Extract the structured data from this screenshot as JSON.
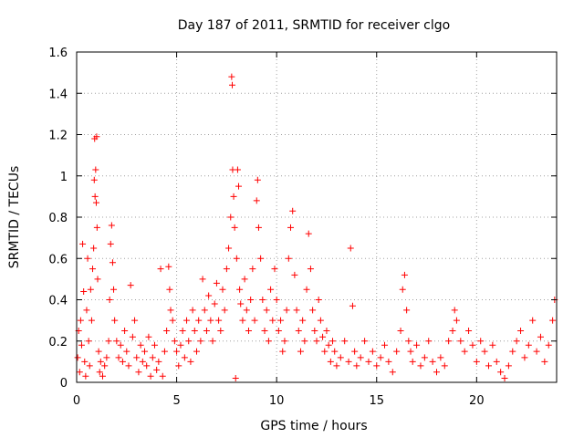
{
  "chart_data": {
    "type": "scatter",
    "title": "Day 187 of 2011, SRMTID for receiver clgo",
    "xlabel": "GPS time / hours",
    "ylabel": "SRMTID / TECUs",
    "xlim": [
      0,
      24
    ],
    "ylim": [
      0,
      1.6
    ],
    "xticks": [
      0,
      5,
      10,
      15,
      20
    ],
    "xtick_labels": [
      "0",
      "5",
      "10",
      "15",
      "20"
    ],
    "yticks": [
      0,
      0.2,
      0.4,
      0.6,
      0.8,
      1,
      1.2,
      1.4,
      1.6
    ],
    "ytick_labels": [
      "0",
      "0.2",
      "0.4",
      "0.6",
      "0.8",
      "1",
      "1.2",
      "1.4",
      "1.6"
    ],
    "grid": true,
    "marker": "plus",
    "color": "#ff0000",
    "series": [
      {
        "name": "SRMTID",
        "points": [
          [
            0.05,
            0.12
          ],
          [
            0.1,
            0.25
          ],
          [
            0.15,
            0.05
          ],
          [
            0.2,
            0.3
          ],
          [
            0.25,
            0.18
          ],
          [
            0.3,
            0.67
          ],
          [
            0.35,
            0.44
          ],
          [
            0.4,
            0.1
          ],
          [
            0.45,
            0.03
          ],
          [
            0.5,
            0.35
          ],
          [
            0.55,
            0.6
          ],
          [
            0.6,
            0.2
          ],
          [
            0.65,
            0.08
          ],
          [
            0.7,
            0.45
          ],
          [
            0.75,
            0.3
          ],
          [
            0.8,
            0.55
          ],
          [
            0.85,
            0.65
          ],
          [
            0.88,
            0.98
          ],
          [
            0.9,
            1.18
          ],
          [
            0.92,
            0.9
          ],
          [
            0.95,
            1.03
          ],
          [
            0.98,
            0.87
          ],
          [
            1.0,
            1.19
          ],
          [
            1.02,
            0.75
          ],
          [
            1.05,
            0.5
          ],
          [
            1.1,
            0.15
          ],
          [
            1.15,
            0.05
          ],
          [
            1.2,
            0.1
          ],
          [
            1.3,
            0.03
          ],
          [
            1.4,
            0.08
          ],
          [
            1.5,
            0.12
          ],
          [
            1.6,
            0.2
          ],
          [
            1.65,
            0.4
          ],
          [
            1.7,
            0.67
          ],
          [
            1.75,
            0.76
          ],
          [
            1.8,
            0.58
          ],
          [
            1.85,
            0.45
          ],
          [
            1.9,
            0.3
          ],
          [
            2.0,
            0.2
          ],
          [
            2.1,
            0.12
          ],
          [
            2.2,
            0.18
          ],
          [
            2.3,
            0.1
          ],
          [
            2.4,
            0.25
          ],
          [
            2.5,
            0.15
          ],
          [
            2.6,
            0.08
          ],
          [
            2.7,
            0.47
          ],
          [
            2.8,
            0.22
          ],
          [
            2.9,
            0.3
          ],
          [
            3.0,
            0.12
          ],
          [
            3.1,
            0.05
          ],
          [
            3.2,
            0.18
          ],
          [
            3.3,
            0.1
          ],
          [
            3.4,
            0.15
          ],
          [
            3.5,
            0.08
          ],
          [
            3.6,
            0.22
          ],
          [
            3.7,
            0.03
          ],
          [
            3.8,
            0.12
          ],
          [
            3.9,
            0.18
          ],
          [
            4.0,
            0.06
          ],
          [
            4.1,
            0.1
          ],
          [
            4.2,
            0.55
          ],
          [
            4.3,
            0.03
          ],
          [
            4.4,
            0.15
          ],
          [
            4.5,
            0.25
          ],
          [
            4.6,
            0.56
          ],
          [
            4.65,
            0.45
          ],
          [
            4.7,
            0.35
          ],
          [
            4.8,
            0.3
          ],
          [
            4.9,
            0.2
          ],
          [
            5.0,
            0.15
          ],
          [
            5.1,
            0.08
          ],
          [
            5.2,
            0.18
          ],
          [
            5.3,
            0.25
          ],
          [
            5.4,
            0.12
          ],
          [
            5.5,
            0.3
          ],
          [
            5.6,
            0.2
          ],
          [
            5.7,
            0.1
          ],
          [
            5.8,
            0.35
          ],
          [
            5.9,
            0.25
          ],
          [
            6.0,
            0.15
          ],
          [
            6.1,
            0.3
          ],
          [
            6.2,
            0.2
          ],
          [
            6.3,
            0.5
          ],
          [
            6.4,
            0.35
          ],
          [
            6.5,
            0.25
          ],
          [
            6.6,
            0.42
          ],
          [
            6.7,
            0.3
          ],
          [
            6.8,
            0.2
          ],
          [
            6.9,
            0.38
          ],
          [
            7.0,
            0.48
          ],
          [
            7.1,
            0.3
          ],
          [
            7.2,
            0.25
          ],
          [
            7.3,
            0.45
          ],
          [
            7.4,
            0.35
          ],
          [
            7.5,
            0.55
          ],
          [
            7.6,
            0.65
          ],
          [
            7.7,
            0.8
          ],
          [
            7.75,
            1.48
          ],
          [
            7.78,
            1.44
          ],
          [
            7.8,
            1.03
          ],
          [
            7.85,
            0.9
          ],
          [
            7.9,
            0.75
          ],
          [
            7.95,
            0.02
          ],
          [
            8.0,
            0.6
          ],
          [
            8.05,
            1.03
          ],
          [
            8.1,
            0.95
          ],
          [
            8.15,
            0.45
          ],
          [
            8.2,
            0.38
          ],
          [
            8.3,
            0.3
          ],
          [
            8.4,
            0.5
          ],
          [
            8.5,
            0.35
          ],
          [
            8.6,
            0.25
          ],
          [
            8.7,
            0.4
          ],
          [
            8.8,
            0.55
          ],
          [
            8.9,
            0.3
          ],
          [
            9.0,
            0.88
          ],
          [
            9.05,
            0.98
          ],
          [
            9.1,
            0.75
          ],
          [
            9.2,
            0.6
          ],
          [
            9.3,
            0.4
          ],
          [
            9.4,
            0.25
          ],
          [
            9.5,
            0.35
          ],
          [
            9.6,
            0.2
          ],
          [
            9.7,
            0.45
          ],
          [
            9.8,
            0.3
          ],
          [
            9.9,
            0.55
          ],
          [
            10.0,
            0.4
          ],
          [
            10.1,
            0.25
          ],
          [
            10.2,
            0.3
          ],
          [
            10.3,
            0.15
          ],
          [
            10.4,
            0.2
          ],
          [
            10.5,
            0.35
          ],
          [
            10.6,
            0.6
          ],
          [
            10.7,
            0.75
          ],
          [
            10.8,
            0.83
          ],
          [
            10.9,
            0.52
          ],
          [
            11.0,
            0.35
          ],
          [
            11.1,
            0.25
          ],
          [
            11.2,
            0.15
          ],
          [
            11.3,
            0.3
          ],
          [
            11.4,
            0.2
          ],
          [
            11.5,
            0.45
          ],
          [
            11.6,
            0.72
          ],
          [
            11.7,
            0.55
          ],
          [
            11.8,
            0.35
          ],
          [
            11.9,
            0.25
          ],
          [
            12.0,
            0.2
          ],
          [
            12.1,
            0.4
          ],
          [
            12.2,
            0.3
          ],
          [
            12.3,
            0.22
          ],
          [
            12.4,
            0.15
          ],
          [
            12.5,
            0.25
          ],
          [
            12.6,
            0.18
          ],
          [
            12.7,
            0.1
          ],
          [
            12.8,
            0.2
          ],
          [
            12.9,
            0.15
          ],
          [
            13.0,
            0.08
          ],
          [
            13.2,
            0.12
          ],
          [
            13.4,
            0.2
          ],
          [
            13.6,
            0.1
          ],
          [
            13.7,
            0.65
          ],
          [
            13.8,
            0.37
          ],
          [
            13.9,
            0.15
          ],
          [
            14.0,
            0.08
          ],
          [
            14.2,
            0.12
          ],
          [
            14.4,
            0.2
          ],
          [
            14.6,
            0.1
          ],
          [
            14.8,
            0.15
          ],
          [
            15.0,
            0.08
          ],
          [
            15.2,
            0.12
          ],
          [
            15.4,
            0.18
          ],
          [
            15.6,
            0.1
          ],
          [
            15.8,
            0.05
          ],
          [
            16.0,
            0.15
          ],
          [
            16.2,
            0.25
          ],
          [
            16.3,
            0.45
          ],
          [
            16.4,
            0.52
          ],
          [
            16.5,
            0.35
          ],
          [
            16.6,
            0.2
          ],
          [
            16.7,
            0.15
          ],
          [
            16.8,
            0.1
          ],
          [
            17.0,
            0.18
          ],
          [
            17.2,
            0.08
          ],
          [
            17.4,
            0.12
          ],
          [
            17.6,
            0.2
          ],
          [
            17.8,
            0.1
          ],
          [
            18.0,
            0.05
          ],
          [
            18.2,
            0.12
          ],
          [
            18.4,
            0.08
          ],
          [
            18.6,
            0.2
          ],
          [
            18.8,
            0.25
          ],
          [
            18.9,
            0.35
          ],
          [
            19.0,
            0.3
          ],
          [
            19.2,
            0.2
          ],
          [
            19.4,
            0.15
          ],
          [
            19.6,
            0.25
          ],
          [
            19.8,
            0.18
          ],
          [
            20.0,
            0.1
          ],
          [
            20.2,
            0.2
          ],
          [
            20.4,
            0.15
          ],
          [
            20.6,
            0.08
          ],
          [
            20.8,
            0.18
          ],
          [
            21.0,
            0.1
          ],
          [
            21.2,
            0.05
          ],
          [
            21.4,
            0.02
          ],
          [
            21.6,
            0.08
          ],
          [
            21.8,
            0.15
          ],
          [
            22.0,
            0.2
          ],
          [
            22.2,
            0.25
          ],
          [
            22.4,
            0.12
          ],
          [
            22.6,
            0.18
          ],
          [
            22.8,
            0.3
          ],
          [
            23.0,
            0.15
          ],
          [
            23.2,
            0.22
          ],
          [
            23.4,
            0.1
          ],
          [
            23.6,
            0.18
          ],
          [
            23.8,
            0.3
          ],
          [
            23.9,
            0.4
          ]
        ]
      }
    ]
  }
}
